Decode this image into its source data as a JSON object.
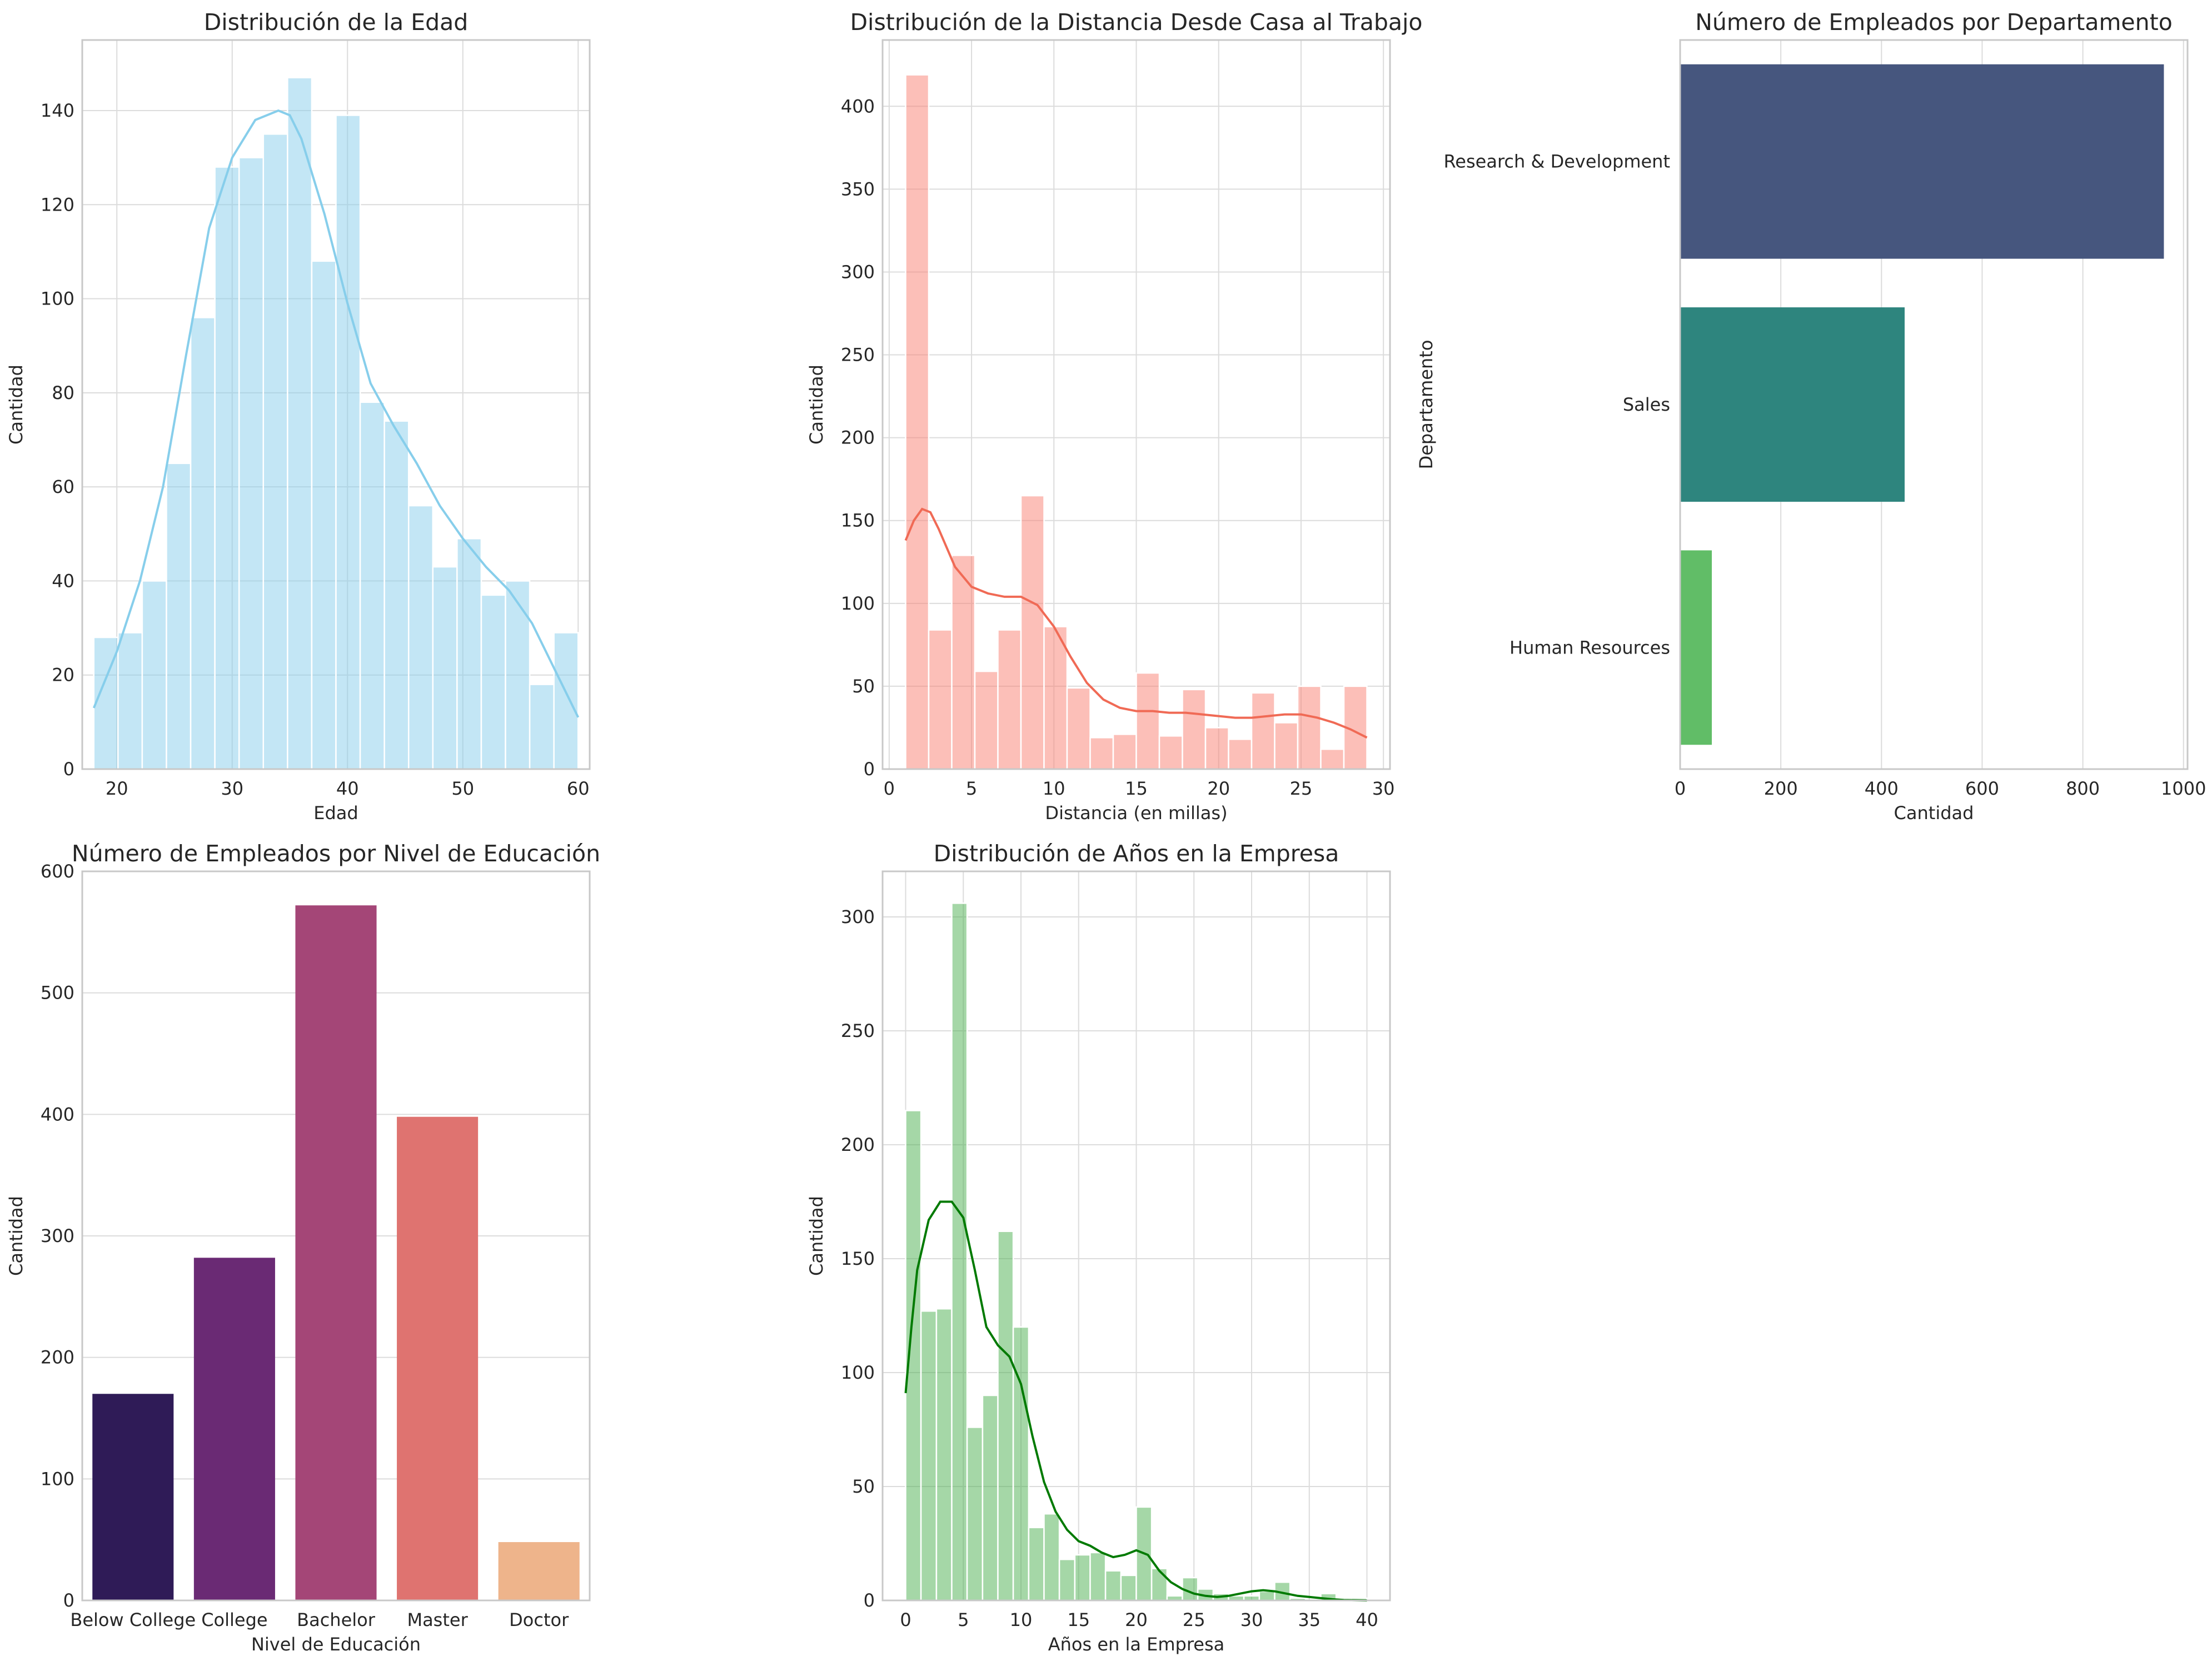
{
  "chart_data": [
    {
      "type": "bar",
      "subtype": "histogram_with_kde",
      "title": "Distribución de la Edad",
      "xlabel": "Edad",
      "ylabel": "Cantidad",
      "xlim": [
        17,
        61
      ],
      "ylim": [
        0,
        155
      ],
      "xticks": [
        20,
        30,
        40,
        50,
        60
      ],
      "yticks": [
        0,
        20,
        40,
        60,
        80,
        100,
        120,
        140
      ],
      "color": "#87ceeb",
      "bins": [
        {
          "x0": 18.0,
          "x1": 20.1,
          "count": 28
        },
        {
          "x0": 20.1,
          "x1": 22.2,
          "count": 29
        },
        {
          "x0": 22.2,
          "x1": 24.3,
          "count": 40
        },
        {
          "x0": 24.3,
          "x1": 26.4,
          "count": 65
        },
        {
          "x0": 26.4,
          "x1": 28.5,
          "count": 96
        },
        {
          "x0": 28.5,
          "x1": 30.6,
          "count": 128
        },
        {
          "x0": 30.6,
          "x1": 32.7,
          "count": 130
        },
        {
          "x0": 32.7,
          "x1": 34.8,
          "count": 135
        },
        {
          "x0": 34.8,
          "x1": 36.9,
          "count": 147
        },
        {
          "x0": 36.9,
          "x1": 39.0,
          "count": 108
        },
        {
          "x0": 39.0,
          "x1": 41.1,
          "count": 139
        },
        {
          "x0": 41.1,
          "x1": 43.2,
          "count": 78
        },
        {
          "x0": 43.2,
          "x1": 45.3,
          "count": 74
        },
        {
          "x0": 45.3,
          "x1": 47.4,
          "count": 56
        },
        {
          "x0": 47.4,
          "x1": 49.5,
          "count": 43
        },
        {
          "x0": 49.5,
          "x1": 51.6,
          "count": 49
        },
        {
          "x0": 51.6,
          "x1": 53.7,
          "count": 37
        },
        {
          "x0": 53.7,
          "x1": 55.8,
          "count": 40
        },
        {
          "x0": 55.8,
          "x1": 57.9,
          "count": 18
        },
        {
          "x0": 57.9,
          "x1": 60.0,
          "count": 29
        }
      ],
      "kde": {
        "x": [
          18,
          20,
          22,
          24,
          26,
          28,
          30,
          32,
          34,
          35,
          36,
          38,
          40,
          42,
          44,
          46,
          48,
          50,
          52,
          54,
          56,
          58,
          60
        ],
        "y": [
          13,
          25,
          40,
          60,
          88,
          115,
          130,
          138,
          140,
          139,
          134,
          118,
          99,
          82,
          73,
          65,
          56,
          49,
          43,
          38,
          31,
          21,
          11
        ]
      }
    },
    {
      "type": "bar",
      "subtype": "histogram_with_kde",
      "title": "Distribución de la Distancia Desde Casa al Trabajo",
      "xlabel": "Distancia (en millas)",
      "ylabel": "Cantidad",
      "xlim": [
        -0.4,
        30.4
      ],
      "ylim": [
        0,
        440
      ],
      "xticks": [
        0,
        5,
        10,
        15,
        20,
        25,
        30
      ],
      "yticks": [
        0,
        50,
        100,
        150,
        200,
        250,
        300,
        350,
        400
      ],
      "color": "#fa8072",
      "bins": [
        {
          "x0": 1.0,
          "x1": 2.4,
          "count": 419
        },
        {
          "x0": 2.4,
          "x1": 3.8,
          "count": 84
        },
        {
          "x0": 3.8,
          "x1": 5.2,
          "count": 129
        },
        {
          "x0": 5.2,
          "x1": 6.6,
          "count": 59
        },
        {
          "x0": 6.6,
          "x1": 8.0,
          "count": 84
        },
        {
          "x0": 8.0,
          "x1": 9.4,
          "count": 165
        },
        {
          "x0": 9.4,
          "x1": 10.8,
          "count": 86
        },
        {
          "x0": 10.8,
          "x1": 12.2,
          "count": 49
        },
        {
          "x0": 12.2,
          "x1": 13.6,
          "count": 19
        },
        {
          "x0": 13.6,
          "x1": 15.0,
          "count": 21
        },
        {
          "x0": 15.0,
          "x1": 16.4,
          "count": 58
        },
        {
          "x0": 16.4,
          "x1": 17.8,
          "count": 20
        },
        {
          "x0": 17.8,
          "x1": 19.2,
          "count": 48
        },
        {
          "x0": 19.2,
          "x1": 20.6,
          "count": 25
        },
        {
          "x0": 20.6,
          "x1": 22.0,
          "count": 18
        },
        {
          "x0": 22.0,
          "x1": 23.4,
          "count": 46
        },
        {
          "x0": 23.4,
          "x1": 24.8,
          "count": 28
        },
        {
          "x0": 24.8,
          "x1": 26.2,
          "count": 50
        },
        {
          "x0": 26.2,
          "x1": 27.6,
          "count": 12
        },
        {
          "x0": 27.6,
          "x1": 29.0,
          "count": 50
        }
      ],
      "kde": {
        "x": [
          1,
          1.5,
          2,
          2.5,
          3,
          4,
          5,
          6,
          7,
          8,
          9,
          10,
          11,
          12,
          13,
          14,
          15,
          16,
          17,
          18,
          19,
          20,
          21,
          22,
          23,
          24,
          25,
          26,
          27,
          28,
          29
        ],
        "y": [
          138,
          150,
          157,
          155,
          145,
          122,
          110,
          106,
          104,
          104,
          99,
          86,
          68,
          52,
          42,
          37,
          35,
          35,
          34,
          34,
          33,
          32,
          31,
          31,
          32,
          33,
          33,
          31,
          28,
          24,
          19
        ]
      }
    },
    {
      "type": "bar",
      "orientation": "horizontal",
      "title": "Número de Empleados por Departamento",
      "xlabel": "Cantidad",
      "ylabel": "Departamento",
      "xlim": [
        0,
        1008
      ],
      "xticks": [
        0,
        200,
        400,
        600,
        800,
        1000
      ],
      "categories": [
        "Research & Development",
        "Sales",
        "Human Resources"
      ],
      "values": [
        961,
        446,
        63
      ],
      "colors": [
        "#46567e",
        "#2e857e",
        "#61bd67"
      ]
    },
    {
      "type": "bar",
      "title": "Número de Empleados por Nivel de Educación",
      "xlabel": "Nivel de Educación",
      "ylabel": "Cantidad",
      "ylim": [
        0,
        600
      ],
      "yticks": [
        0,
        100,
        200,
        300,
        400,
        500,
        600
      ],
      "categories": [
        "Below College",
        "College",
        "Bachelor",
        "Master",
        "Doctor"
      ],
      "values": [
        170,
        282,
        572,
        398,
        48
      ],
      "colors": [
        "#2f1b57",
        "#6a2a74",
        "#a44677",
        "#df7370",
        "#eeb48b"
      ]
    },
    {
      "type": "bar",
      "subtype": "histogram_with_kde",
      "title": "Distribución de Años en la Empresa",
      "xlabel": "Años en la Empresa",
      "ylabel": "Cantidad",
      "xlim": [
        -2,
        42
      ],
      "ylim": [
        0,
        320
      ],
      "xticks": [
        0,
        5,
        10,
        15,
        20,
        25,
        30,
        35,
        40
      ],
      "yticks": [
        0,
        50,
        100,
        150,
        200,
        250,
        300
      ],
      "color": "#4caf50",
      "bins": [
        {
          "x0": 0.0,
          "x1": 1.33,
          "count": 215
        },
        {
          "x0": 1.33,
          "x1": 2.67,
          "count": 127
        },
        {
          "x0": 2.67,
          "x1": 4.0,
          "count": 128
        },
        {
          "x0": 4.0,
          "x1": 5.33,
          "count": 306
        },
        {
          "x0": 5.33,
          "x1": 6.67,
          "count": 76
        },
        {
          "x0": 6.67,
          "x1": 8.0,
          "count": 90
        },
        {
          "x0": 8.0,
          "x1": 9.33,
          "count": 162
        },
        {
          "x0": 9.33,
          "x1": 10.67,
          "count": 120
        },
        {
          "x0": 10.67,
          "x1": 12.0,
          "count": 32
        },
        {
          "x0": 12.0,
          "x1": 13.33,
          "count": 38
        },
        {
          "x0": 13.33,
          "x1": 14.67,
          "count": 18
        },
        {
          "x0": 14.67,
          "x1": 16.0,
          "count": 20
        },
        {
          "x0": 16.0,
          "x1": 17.33,
          "count": 21
        },
        {
          "x0": 17.33,
          "x1": 18.67,
          "count": 13
        },
        {
          "x0": 18.67,
          "x1": 20.0,
          "count": 11
        },
        {
          "x0": 20.0,
          "x1": 21.33,
          "count": 41
        },
        {
          "x0": 21.33,
          "x1": 22.67,
          "count": 14
        },
        {
          "x0": 22.67,
          "x1": 24.0,
          "count": 2
        },
        {
          "x0": 24.0,
          "x1": 25.33,
          "count": 10
        },
        {
          "x0": 25.33,
          "x1": 26.67,
          "count": 5
        },
        {
          "x0": 26.67,
          "x1": 28.0,
          "count": 3
        },
        {
          "x0": 28.0,
          "x1": 29.33,
          "count": 2
        },
        {
          "x0": 29.33,
          "x1": 30.67,
          "count": 2
        },
        {
          "x0": 30.67,
          "x1": 32.0,
          "count": 4
        },
        {
          "x0": 32.0,
          "x1": 33.33,
          "count": 8
        },
        {
          "x0": 33.33,
          "x1": 34.67,
          "count": 1
        },
        {
          "x0": 34.67,
          "x1": 36.0,
          "count": 0
        },
        {
          "x0": 36.0,
          "x1": 37.33,
          "count": 3
        },
        {
          "x0": 37.33,
          "x1": 38.67,
          "count": 0
        },
        {
          "x0": 38.67,
          "x1": 40.0,
          "count": 1
        }
      ],
      "kde": {
        "x": [
          0,
          0.5,
          1,
          2,
          3,
          4,
          5,
          6,
          7,
          8,
          9,
          10,
          11,
          12,
          13,
          14,
          15,
          16,
          17,
          18,
          19,
          20,
          21,
          22,
          23,
          24,
          25,
          26,
          27,
          28,
          29,
          30,
          31,
          32,
          33,
          34,
          35,
          36,
          37,
          38,
          39,
          40
        ],
        "y": [
          91,
          120,
          145,
          167,
          175,
          175,
          168,
          145,
          120,
          112,
          107,
          95,
          72,
          52,
          39,
          31,
          26,
          24,
          21,
          19,
          20,
          22,
          20,
          13,
          8,
          5,
          3,
          2,
          1.5,
          2,
          3,
          4,
          4.5,
          4,
          3,
          2,
          1.5,
          1,
          0.5,
          0.2,
          0.1,
          0
        ]
      }
    }
  ]
}
